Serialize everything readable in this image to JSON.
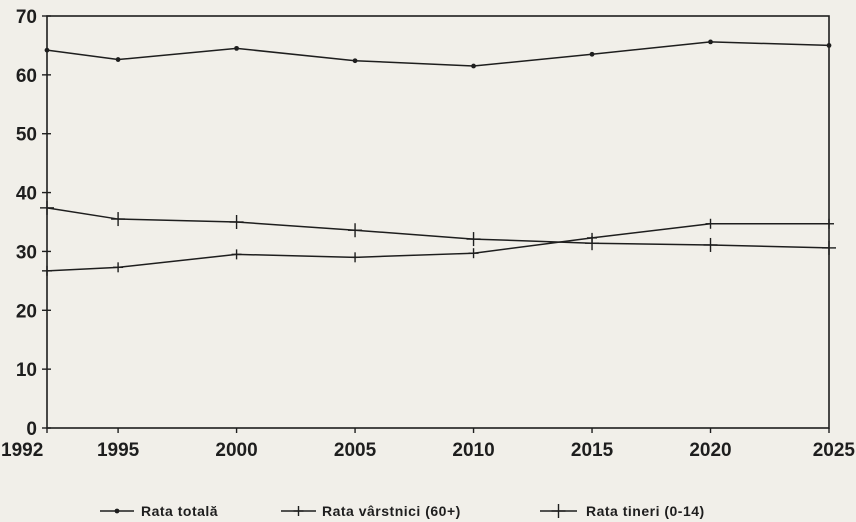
{
  "chart_data": {
    "type": "line",
    "x": [
      1992,
      1995,
      2000,
      2005,
      2010,
      2015,
      2020,
      2025
    ],
    "ylim": [
      0,
      70
    ],
    "yticks": [
      0,
      10,
      20,
      30,
      40,
      50,
      60,
      70
    ],
    "xtick_labels": [
      "1992",
      "1995",
      "2000",
      "2005",
      "2010",
      "2015",
      "2020",
      "2025"
    ],
    "ytick_labels": [
      "0",
      "10",
      "20",
      "30",
      "40",
      "50",
      "60",
      "70"
    ],
    "grid": false,
    "legend_position": "bottom",
    "series": [
      {
        "name": "Rata totală",
        "marker": "dot",
        "values": [
          64.2,
          62.6,
          64.5,
          62.4,
          61.5,
          63.5,
          65.6,
          65.0
        ]
      },
      {
        "name": "Rata vârstnici (60+)",
        "marker": "plus",
        "values": [
          26.7,
          27.3,
          29.5,
          29.0,
          29.7,
          32.3,
          34.7,
          34.7
        ]
      },
      {
        "name": "Rata tineri (0-14)",
        "marker": "cross",
        "values": [
          37.4,
          35.5,
          35.0,
          33.6,
          32.1,
          31.4,
          31.1,
          30.6
        ]
      }
    ],
    "colors": {
      "line": "#1e1e1e",
      "background": "#f1efe9"
    }
  }
}
